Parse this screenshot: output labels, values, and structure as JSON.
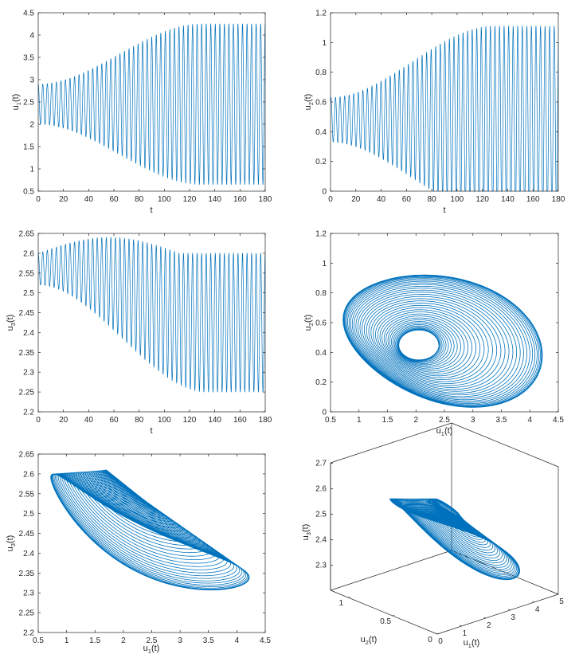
{
  "figure": {
    "colors": {
      "line": "#0072BD",
      "axes": "#262626",
      "background": "#ffffff"
    }
  },
  "chart_data": [
    {
      "id": "u1t",
      "type": "line",
      "title": "",
      "xlabel": {
        "base": "t",
        "sub": ""
      },
      "ylabel": {
        "base": "u",
        "sub": "1",
        "suffix": "(t)"
      },
      "xlim": [
        0,
        180
      ],
      "ylim": [
        0.5,
        4.5
      ],
      "xticks": [
        "0",
        "20",
        "40",
        "60",
        "80",
        "100",
        "120",
        "140",
        "160",
        "180"
      ],
      "yticks": [
        "0.5",
        "1",
        "1.5",
        "2",
        "2.5",
        "3",
        "3.5",
        "4",
        "4.5"
      ],
      "series": [
        {
          "x_range": [
            0,
            180
          ],
          "cycles": 50,
          "center": 2.45,
          "amplitude_start": 0.45,
          "amplitude_end": 1.8,
          "phase": 0
        }
      ]
    },
    {
      "id": "u2t",
      "type": "line",
      "title": "",
      "xlabel": {
        "base": "t",
        "sub": ""
      },
      "ylabel": {
        "base": "u",
        "sub": "2",
        "suffix": "(t)"
      },
      "xlim": [
        0,
        180
      ],
      "ylim": [
        0,
        1.2
      ],
      "xticks": [
        "0",
        "20",
        "40",
        "60",
        "80",
        "100",
        "120",
        "140",
        "160",
        "180"
      ],
      "yticks": [
        "0",
        "0.2",
        "0.4",
        "0.6",
        "0.8",
        "1",
        "1.2"
      ],
      "series": [
        {
          "x_range": [
            0,
            180
          ],
          "cycles": 50,
          "center": 0.48,
          "amplitude_start": 0.15,
          "amplitude_end": 0.63,
          "phase": 0
        }
      ]
    },
    {
      "id": "u3t",
      "type": "line",
      "title": "",
      "xlabel": {
        "base": "t",
        "sub": ""
      },
      "ylabel": {
        "base": "u",
        "sub": "3",
        "suffix": "(t)"
      },
      "xlim": [
        0,
        180
      ],
      "ylim": [
        2.2,
        2.65
      ],
      "xticks": [
        "0",
        "20",
        "40",
        "60",
        "80",
        "100",
        "120",
        "140",
        "160",
        "180"
      ],
      "yticks": [
        "2.2",
        "2.25",
        "2.3",
        "2.35",
        "2.4",
        "2.45",
        "2.5",
        "2.55",
        "2.6",
        "2.65"
      ],
      "series": [
        {
          "x_range": [
            0,
            180
          ],
          "cycles": 50,
          "upper": 2.6,
          "lower_start": 2.52,
          "lower_end": 2.25,
          "overshoot": 0.04,
          "phase": 0
        }
      ]
    },
    {
      "id": "u1u2",
      "type": "line",
      "title": "",
      "xlabel": {
        "base": "u",
        "sub": "1",
        "suffix": "(t)"
      },
      "ylabel": {
        "base": "u",
        "sub": "2",
        "suffix": "(t)"
      },
      "xlim": [
        0.5,
        4.5
      ],
      "ylim": [
        0,
        1.2
      ],
      "xticks": [
        "0.5",
        "1",
        "1.5",
        "2",
        "2.5",
        "3",
        "3.5",
        "4",
        "4.5"
      ],
      "yticks": [
        "0",
        "0.2",
        "0.4",
        "0.6",
        "0.8",
        "1",
        "1.2"
      ],
      "series": [
        {
          "center": [
            2.05,
            0.45
          ],
          "cycles": 50
        }
      ]
    },
    {
      "id": "u1u3",
      "type": "line",
      "title": "",
      "xlabel": {
        "base": "u",
        "sub": "1",
        "suffix": "(t)"
      },
      "ylabel": {
        "base": "u",
        "sub": "3",
        "suffix": "(t)"
      },
      "xlim": [
        0.5,
        4.5
      ],
      "ylim": [
        2.2,
        2.65
      ],
      "xticks": [
        "0.5",
        "1",
        "1.5",
        "2",
        "2.5",
        "3",
        "3.5",
        "4",
        "4.5"
      ],
      "yticks": [
        "2.2",
        "2.25",
        "2.3",
        "2.35",
        "2.4",
        "2.45",
        "2.5",
        "2.55",
        "2.6",
        "2.65"
      ],
      "series": [
        {
          "center": [
            2.05,
            2.55
          ],
          "cycles": 50
        }
      ]
    },
    {
      "id": "u123",
      "type": "line",
      "title": "",
      "xlabel": {
        "base": "u",
        "sub": "1",
        "suffix": "(t)"
      },
      "ylabel": {
        "base": "u",
        "sub": "2",
        "suffix": "(t)"
      },
      "zlabel": {
        "base": "u",
        "sub": "3",
        "suffix": "(t)"
      },
      "xlim": [
        0,
        5
      ],
      "ylim": [
        0,
        1.2
      ],
      "zlim": [
        2.2,
        2.7
      ],
      "xticks": [
        "0",
        "1",
        "2",
        "3",
        "4",
        "5"
      ],
      "yticks": [
        "0",
        "0.5",
        "1"
      ],
      "zticks": [
        "2.3",
        "2.4",
        "2.5",
        "2.6",
        "2.7"
      ],
      "series": [
        {
          "cycles": 50
        }
      ]
    }
  ]
}
